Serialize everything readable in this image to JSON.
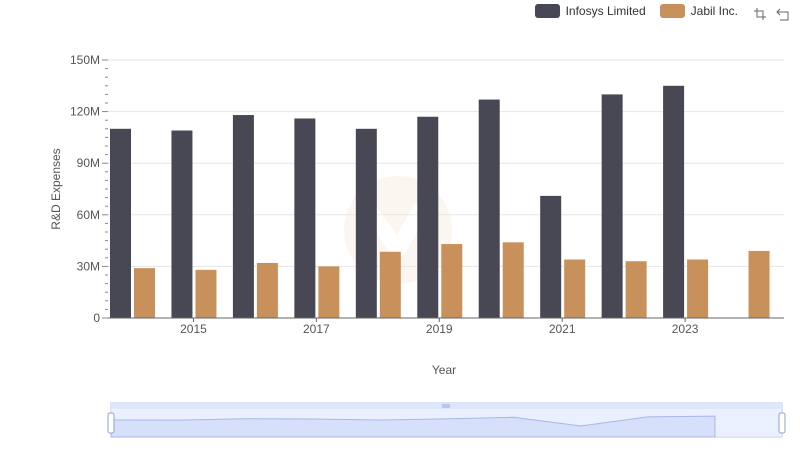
{
  "legend": {
    "series1": "Infosys Limited",
    "series2": "Jabil Inc."
  },
  "toolbox": {
    "zoom": "zoom-select-icon",
    "reset": "restore-icon"
  },
  "colors": {
    "series1": "#484854",
    "series2": "#c8905a",
    "grid": "#e6e6e6",
    "slider_fill": "#d6e0fb",
    "slider_border": "#b9c6ee"
  },
  "chart_data": {
    "type": "bar",
    "title": "",
    "xlabel": "Year",
    "ylabel": "R&D Expenses",
    "ylim": [
      0,
      150000000
    ],
    "y_ticks": [
      "0",
      "30M",
      "60M",
      "90M",
      "120M",
      "150M"
    ],
    "categories": [
      "2014",
      "2015",
      "2016",
      "2017",
      "2018",
      "2019",
      "2020",
      "2021",
      "2022",
      "2023",
      "2024"
    ],
    "x_tick_labels": [
      "2015",
      "2017",
      "2019",
      "2021",
      "2023"
    ],
    "series": [
      {
        "name": "Infosys Limited",
        "values": [
          110000000,
          109000000,
          118000000,
          116000000,
          110000000,
          117000000,
          127000000,
          71000000,
          130000000,
          135000000,
          null
        ]
      },
      {
        "name": "Jabil Inc.",
        "values": [
          29000000,
          28000000,
          32000000,
          30000000,
          38500000,
          43000000,
          44000000,
          34000000,
          33000000,
          34000000,
          39000000
        ]
      }
    ]
  }
}
